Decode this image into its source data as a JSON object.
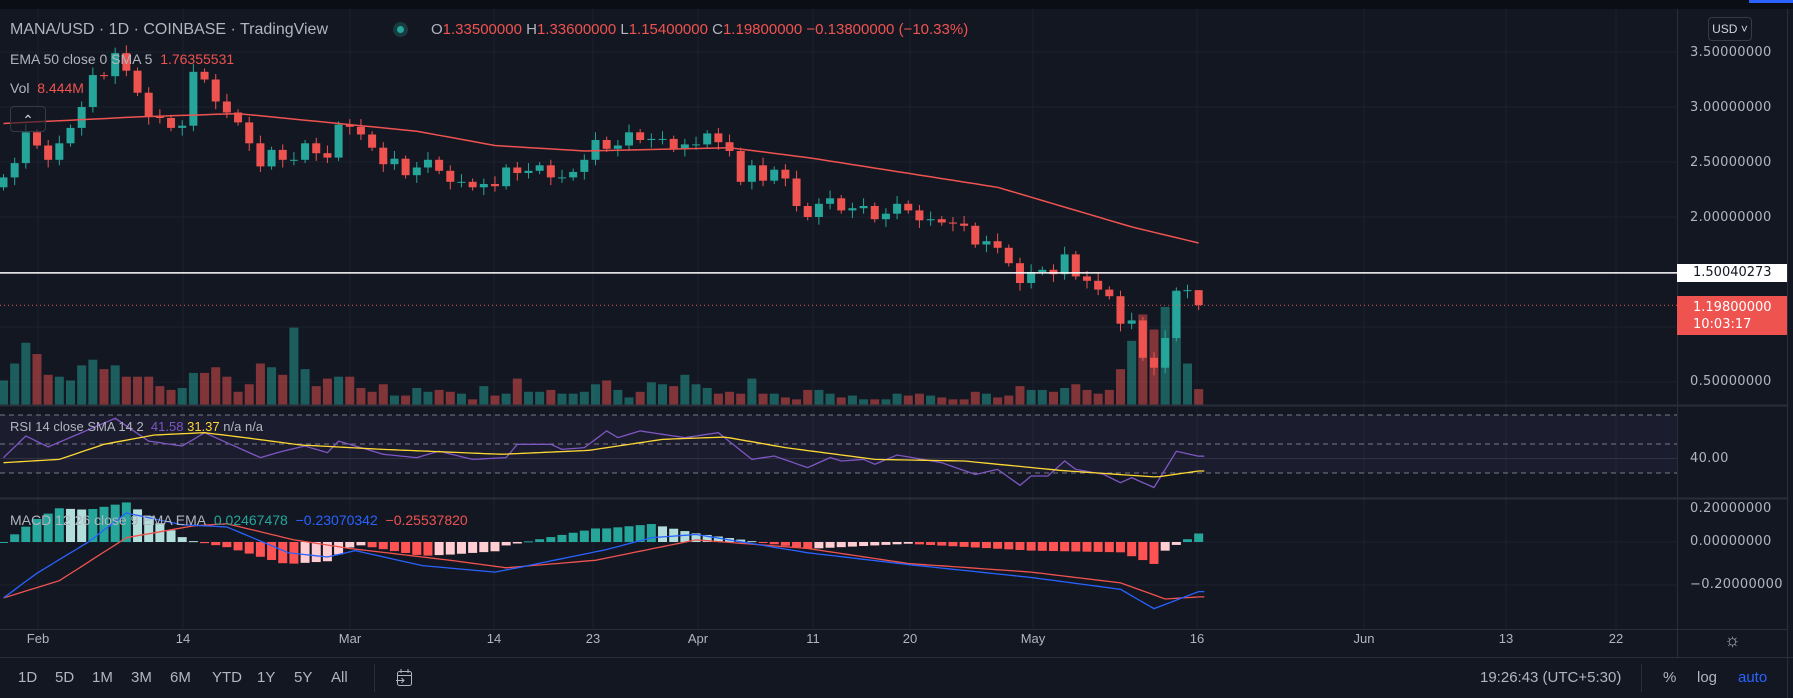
{
  "header": {
    "symbol_line": "MANA/USD · 1D · COINBASE · TradingView",
    "ohlc": {
      "o_label": "O",
      "o": "1.33500000",
      "h_label": "H",
      "h": "1.33600000",
      "l_label": "L",
      "l": "1.15400000",
      "c_label": "C",
      "c": "1.19800000",
      "change": "−0.13800000 (−10.33%)"
    },
    "status_icon": "market-status-dot-icon"
  },
  "indicators": {
    "ema": {
      "label": "EMA 50 close 0 SMA 5",
      "value": "1.76355531"
    },
    "vol": {
      "label": "Vol",
      "value": "8.444M"
    },
    "rsi": {
      "label": "RSI 14 close SMA 14 2",
      "rsi": "41.58",
      "sma": "31.37",
      "na1": "n/a",
      "na2": "n/a"
    },
    "macd": {
      "label": "MACD 12 26 close 9 EMA EMA",
      "hist": "0.02467478",
      "macd": "−0.23070342",
      "signal": "−0.25537820"
    }
  },
  "price_axis": {
    "currency": "USD",
    "labels": [
      "3.50000000",
      "3.00000000",
      "2.50000000",
      "2.00000000",
      "0.50000000"
    ],
    "horizontal_line_label": "1.50040273",
    "last_price": "1.19800000",
    "countdown": "10:03:17",
    "rsi_label": "40.00",
    "macd_labels": [
      "0.20000000",
      "0.00000000",
      "−0.20000000"
    ]
  },
  "time_axis": {
    "labels": [
      "Feb",
      "14",
      "Mar",
      "14",
      "23",
      "Apr",
      "11",
      "20",
      "May",
      "16",
      "Jun",
      "13",
      "22"
    ]
  },
  "bottom_bar": {
    "ranges": [
      "1D",
      "5D",
      "1M",
      "3M",
      "6M",
      "YTD",
      "1Y",
      "5Y",
      "All"
    ],
    "clock": "19:26:43 (UTC+5:30)",
    "percent": "%",
    "log": "log",
    "auto": "auto"
  },
  "colors": {
    "up": "#26a69a",
    "down": "#ef5350",
    "ema": "#ef5350",
    "rsi": "#7e57c2",
    "rsi_sma": "#fdd835",
    "macd": "#2962ff",
    "signal": "#ef5350",
    "bg": "#131722",
    "accent": "#2962ff"
  },
  "chart_data": {
    "type": "candlestick",
    "symbol": "MANA/USD",
    "interval": "1D",
    "first_bar": "Jan 29",
    "last_bar": "May 16",
    "open_first": 2.27,
    "close": [
      2.36,
      2.49,
      2.77,
      2.65,
      2.52,
      2.67,
      2.81,
      3.0,
      3.29,
      3.28,
      3.49,
      3.33,
      3.13,
      2.91,
      2.9,
      2.81,
      2.83,
      3.32,
      3.25,
      3.05,
      2.95,
      2.86,
      2.67,
      2.46,
      2.61,
      2.52,
      2.52,
      2.67,
      2.58,
      2.54,
      2.84,
      2.82,
      2.75,
      2.63,
      2.48,
      2.53,
      2.38,
      2.45,
      2.52,
      2.42,
      2.32,
      2.32,
      2.27,
      2.3,
      2.28,
      2.45,
      2.4,
      2.42,
      2.47,
      2.36,
      2.36,
      2.41,
      2.52,
      2.7,
      2.62,
      2.65,
      2.77,
      2.7,
      2.71,
      2.71,
      2.62,
      2.66,
      2.66,
      2.76,
      2.68,
      2.6,
      2.32,
      2.47,
      2.33,
      2.43,
      2.35,
      2.1,
      2.0,
      2.12,
      2.17,
      2.06,
      2.08,
      2.1,
      1.98,
      2.03,
      2.12,
      2.06,
      1.97,
      1.98,
      1.95,
      1.94,
      1.92,
      1.75,
      1.78,
      1.72,
      1.58,
      1.4,
      1.5,
      1.52,
      1.48,
      1.66,
      1.46,
      1.42,
      1.34,
      1.28,
      1.03,
      1.06,
      0.72,
      0.63,
      0.9,
      1.33,
      1.335,
      1.198
    ],
    "last_bar_ohlc": {
      "open": 1.335,
      "high": 1.336,
      "low": 1.154,
      "close": 1.198
    },
    "volume_millions": [
      13,
      22,
      33,
      27,
      16,
      15,
      13,
      21,
      24,
      19,
      21,
      15,
      15,
      15,
      10,
      8,
      9,
      17,
      17,
      20,
      15,
      7,
      11,
      22,
      20,
      16,
      41,
      19,
      10,
      14,
      15,
      15,
      9,
      7,
      11,
      5,
      5,
      9,
      7,
      8,
      7,
      6,
      3,
      10,
      5,
      6,
      14,
      7,
      7,
      8,
      6,
      6,
      7,
      11,
      13,
      8,
      4,
      7,
      12,
      11,
      10,
      16,
      11,
      9,
      6,
      7,
      6,
      14,
      6,
      6,
      4,
      3,
      8,
      8,
      6,
      4,
      5,
      3,
      3,
      3,
      6,
      5,
      6,
      5,
      4,
      3,
      3,
      7,
      6,
      4,
      5,
      10,
      8,
      8,
      7,
      9,
      11,
      8,
      6,
      8,
      19,
      34,
      48,
      40,
      52,
      60,
      22,
      8.444
    ],
    "ema50_keypoints": [
      [
        0,
        2.85
      ],
      [
        12,
        2.91
      ],
      [
        21,
        2.94
      ],
      [
        29,
        2.86
      ],
      [
        37,
        2.78
      ],
      [
        44,
        2.65
      ],
      [
        52,
        2.6
      ],
      [
        65,
        2.63
      ],
      [
        72,
        2.54
      ],
      [
        89,
        2.27
      ],
      [
        101,
        1.91
      ],
      [
        107,
        1.7636
      ]
    ],
    "horizontal_line": 1.50040273,
    "price_range": [
      0.3,
      3.7
    ],
    "rsi_keypoints": [
      [
        0,
        40.6
      ],
      [
        2,
        55.5
      ],
      [
        4,
        48
      ],
      [
        10,
        67.7
      ],
      [
        13,
        52
      ],
      [
        16,
        48.6
      ],
      [
        18,
        57.8
      ],
      [
        23,
        40.6
      ],
      [
        25,
        45
      ],
      [
        27,
        48.6
      ],
      [
        29,
        44
      ],
      [
        30,
        52
      ],
      [
        34,
        42.9
      ],
      [
        37,
        40.6
      ],
      [
        39,
        45
      ],
      [
        42,
        39.4
      ],
      [
        45,
        40.6
      ],
      [
        46,
        49.8
      ],
      [
        49,
        49.8
      ],
      [
        50,
        46.3
      ],
      [
        52,
        47.5
      ],
      [
        54,
        59
      ],
      [
        55,
        54.4
      ],
      [
        57,
        59
      ],
      [
        59,
        56.7
      ],
      [
        61,
        54.4
      ],
      [
        64,
        57.8
      ],
      [
        67,
        39.4
      ],
      [
        69,
        41.7
      ],
      [
        72,
        33.7
      ],
      [
        74,
        40.6
      ],
      [
        75,
        38.3
      ],
      [
        77,
        39.4
      ],
      [
        78,
        36
      ],
      [
        80,
        42.4
      ],
      [
        84,
        37.1
      ],
      [
        87,
        29
      ],
      [
        89,
        32.5
      ],
      [
        91,
        21.5
      ],
      [
        92,
        27.9
      ],
      [
        93.5,
        27.9
      ],
      [
        95,
        38.3
      ],
      [
        96,
        32.5
      ],
      [
        98.5,
        29
      ],
      [
        100,
        23.3
      ],
      [
        101,
        26.8
      ],
      [
        103,
        20
      ],
      [
        105,
        45
      ],
      [
        107,
        41.58
      ]
    ],
    "rsi_sma_keypoints": [
      [
        0,
        37.1
      ],
      [
        5,
        39.4
      ],
      [
        9,
        49.8
      ],
      [
        13.5,
        56.2
      ],
      [
        18,
        57.8
      ],
      [
        21.6,
        54.4
      ],
      [
        26.6,
        49.3
      ],
      [
        34,
        46.3
      ],
      [
        44.6,
        42.9
      ],
      [
        52.4,
        45.6
      ],
      [
        59,
        53.2
      ],
      [
        64.6,
        54.8
      ],
      [
        70,
        47.5
      ],
      [
        78,
        39.4
      ],
      [
        86,
        38.3
      ],
      [
        94.6,
        31.8
      ],
      [
        103.2,
        27.2
      ],
      [
        107,
        31.37
      ]
    ],
    "rsi_bands": [
      70,
      50,
      30
    ],
    "macd_keypoints": [
      [
        0,
        -0.26
      ],
      [
        3,
        -0.145
      ],
      [
        7.6,
        0
      ],
      [
        11,
        0.135
      ],
      [
        16,
        0.08
      ],
      [
        20,
        0.07
      ],
      [
        25.5,
        -0.05
      ],
      [
        29,
        -0.07
      ],
      [
        31.5,
        -0.04
      ],
      [
        37.5,
        -0.11
      ],
      [
        44,
        -0.14
      ],
      [
        46,
        -0.12
      ],
      [
        54,
        -0.035
      ],
      [
        58,
        0.02
      ],
      [
        62,
        0.035
      ],
      [
        72,
        -0.05
      ],
      [
        81,
        -0.105
      ],
      [
        92,
        -0.165
      ],
      [
        100,
        -0.22
      ],
      [
        103,
        -0.31
      ],
      [
        107,
        -0.2307
      ]
    ],
    "signal_keypoints": [
      [
        0,
        -0.26
      ],
      [
        5,
        -0.18
      ],
      [
        11,
        0.02
      ],
      [
        17,
        0.075
      ],
      [
        20,
        0.085
      ],
      [
        26,
        0.01
      ],
      [
        31,
        -0.03
      ],
      [
        40,
        -0.085
      ],
      [
        45,
        -0.12
      ],
      [
        53,
        -0.085
      ],
      [
        62,
        0.01
      ],
      [
        72,
        -0.03
      ],
      [
        81,
        -0.1
      ],
      [
        92,
        -0.14
      ],
      [
        100,
        -0.19
      ],
      [
        104,
        -0.265
      ],
      [
        107,
        -0.2554
      ]
    ]
  }
}
